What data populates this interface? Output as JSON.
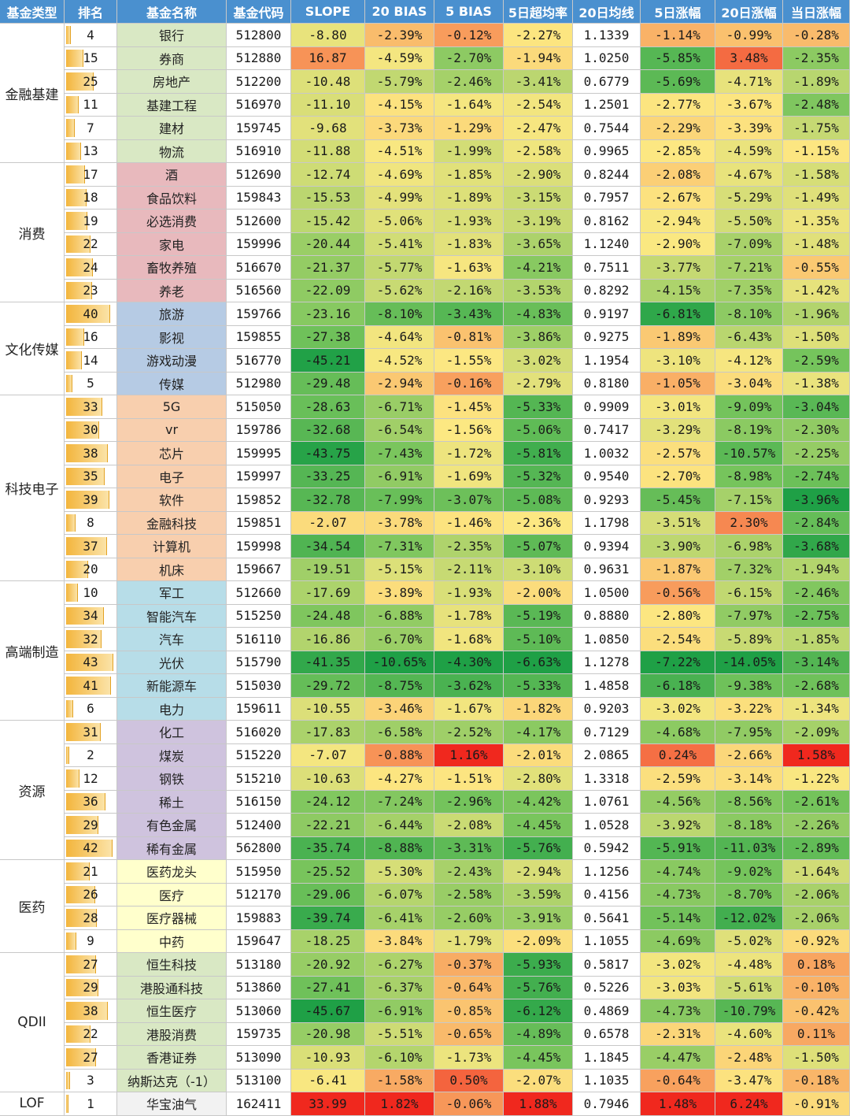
{
  "headers": [
    "基金类型",
    "排名",
    "基金名称",
    "基金代码",
    "SLOPE",
    "20 BIAS",
    "5 BIAS",
    "5日超均率",
    "20日均线",
    "5日涨幅",
    "20日涨幅",
    "当日涨幅"
  ],
  "groups": [
    {
      "name": "金融基建",
      "rows": 6,
      "color": "#d9e8c4"
    },
    {
      "name": "消费",
      "rows": 6,
      "color": "#e8b9bd"
    },
    {
      "name": "文化传媒",
      "rows": 4,
      "color": "#b6cbe4"
    },
    {
      "name": "科技电子",
      "rows": 8,
      "color": "#f8cfae"
    },
    {
      "name": "高端制造",
      "rows": 6,
      "color": "#b7dde8"
    },
    {
      "name": "资源",
      "rows": 6,
      "color": "#cfc3de"
    },
    {
      "name": "医药",
      "rows": 4,
      "color": "#ffffcc"
    },
    {
      "name": "QDII",
      "rows": 6,
      "color": "#d9e8c4"
    },
    {
      "name": "LOF",
      "rows": 1,
      "color": "#f2f2f2"
    }
  ],
  "chart_data": {
    "type": "table",
    "rank_max": 43,
    "rows": [
      {
        "group": 0,
        "rank": "4",
        "name": "银行",
        "code": "512800",
        "slope": -8.8,
        "bias20": -2.39,
        "bias5": -0.12,
        "exceed5": -2.27,
        "ma20": "1.1339",
        "chg5": -1.14,
        "chg20": -0.99,
        "chg1": -0.28
      },
      {
        "group": 0,
        "rank": "15",
        "name": "券商",
        "code": "512880",
        "slope": 16.87,
        "bias20": -4.59,
        "bias5": -2.7,
        "exceed5": -1.94,
        "ma20": "1.0250",
        "chg5": -5.85,
        "chg20": 3.48,
        "chg1": -2.35
      },
      {
        "group": 0,
        "rank": "25",
        "name": "房地产",
        "code": "512200",
        "slope": -10.48,
        "bias20": -5.79,
        "bias5": -2.46,
        "exceed5": -3.41,
        "ma20": "0.6779",
        "chg5": -5.69,
        "chg20": -4.71,
        "chg1": -1.89
      },
      {
        "group": 0,
        "rank": "11",
        "name": "基建工程",
        "code": "516970",
        "slope": -11.1,
        "bias20": -4.15,
        "bias5": -1.64,
        "exceed5": -2.54,
        "ma20": "1.2501",
        "chg5": -2.77,
        "chg20": -3.67,
        "chg1": -2.48
      },
      {
        "group": 0,
        "rank": "7",
        "name": "建材",
        "code": "159745",
        "slope": -9.68,
        "bias20": -3.73,
        "bias5": -1.29,
        "exceed5": -2.47,
        "ma20": "0.7544",
        "chg5": -2.29,
        "chg20": -3.39,
        "chg1": -1.75
      },
      {
        "group": 0,
        "rank": "13",
        "name": "物流",
        "code": "516910",
        "slope": -11.88,
        "bias20": -4.51,
        "bias5": -1.99,
        "exceed5": -2.58,
        "ma20": "0.9965",
        "chg5": -2.85,
        "chg20": -4.59,
        "chg1": -1.15
      },
      {
        "group": 1,
        "rank": "17",
        "name": "酒",
        "code": "512690",
        "slope": -12.74,
        "bias20": -4.69,
        "bias5": -1.85,
        "exceed5": -2.9,
        "ma20": "0.8244",
        "chg5": -2.08,
        "chg20": -4.67,
        "chg1": -1.58
      },
      {
        "group": 1,
        "rank": "18",
        "name": "食品饮料",
        "code": "159843",
        "slope": -15.53,
        "bias20": -4.99,
        "bias5": -1.89,
        "exceed5": -3.15,
        "ma20": "0.7957",
        "chg5": -2.67,
        "chg20": -5.29,
        "chg1": -1.49
      },
      {
        "group": 1,
        "rank": "19",
        "name": "必选消费",
        "code": "512600",
        "slope": -15.42,
        "bias20": -5.06,
        "bias5": -1.93,
        "exceed5": -3.19,
        "ma20": "0.8162",
        "chg5": -2.94,
        "chg20": -5.5,
        "chg1": -1.35
      },
      {
        "group": 1,
        "rank": "22",
        "name": "家电",
        "code": "159996",
        "slope": -20.44,
        "bias20": -5.41,
        "bias5": -1.83,
        "exceed5": -3.65,
        "ma20": "1.1240",
        "chg5": -2.9,
        "chg20": -7.09,
        "chg1": -1.48
      },
      {
        "group": 1,
        "rank": "24",
        "name": "畜牧养殖",
        "code": "516670",
        "slope": -21.37,
        "bias20": -5.77,
        "bias5": -1.63,
        "exceed5": -4.21,
        "ma20": "0.7511",
        "chg5": -3.77,
        "chg20": -7.21,
        "chg1": -0.55
      },
      {
        "group": 1,
        "rank": "23",
        "name": "养老",
        "code": "516560",
        "slope": -22.09,
        "bias20": -5.62,
        "bias5": -2.16,
        "exceed5": -3.53,
        "ma20": "0.8292",
        "chg5": -4.15,
        "chg20": -7.35,
        "chg1": -1.42
      },
      {
        "group": 2,
        "rank": "40",
        "name": "旅游",
        "code": "159766",
        "slope": -23.16,
        "bias20": -8.1,
        "bias5": -3.43,
        "exceed5": -4.83,
        "ma20": "0.9197",
        "chg5": -6.81,
        "chg20": -8.1,
        "chg1": -1.96
      },
      {
        "group": 2,
        "rank": "16",
        "name": "影视",
        "code": "159855",
        "slope": -27.38,
        "bias20": -4.64,
        "bias5": -0.81,
        "exceed5": -3.86,
        "ma20": "0.9275",
        "chg5": -1.89,
        "chg20": -6.43,
        "chg1": -1.5
      },
      {
        "group": 2,
        "rank": "14",
        "name": "游戏动漫",
        "code": "516770",
        "slope": -45.21,
        "bias20": -4.52,
        "bias5": -1.55,
        "exceed5": -3.02,
        "ma20": "1.1954",
        "chg5": -3.1,
        "chg20": -4.12,
        "chg1": -2.59
      },
      {
        "group": 2,
        "rank": "5",
        "name": "传媒",
        "code": "512980",
        "slope": -29.48,
        "bias20": -2.94,
        "bias5": -0.16,
        "exceed5": -2.79,
        "ma20": "0.8180",
        "chg5": -1.05,
        "chg20": -3.04,
        "chg1": -1.38
      },
      {
        "group": 3,
        "rank": "33",
        "name": "5G",
        "code": "515050",
        "slope": -28.63,
        "bias20": -6.71,
        "bias5": -1.45,
        "exceed5": -5.33,
        "ma20": "0.9909",
        "chg5": -3.01,
        "chg20": -9.09,
        "chg1": -3.04
      },
      {
        "group": 3,
        "rank": "30",
        "name": "vr",
        "code": "159786",
        "slope": -32.68,
        "bias20": -6.54,
        "bias5": -1.56,
        "exceed5": -5.06,
        "ma20": "0.7417",
        "chg5": -3.29,
        "chg20": -8.19,
        "chg1": -2.3
      },
      {
        "group": 3,
        "rank": "38",
        "name": "芯片",
        "code": "159995",
        "slope": -43.75,
        "bias20": -7.43,
        "bias5": -1.72,
        "exceed5": -5.81,
        "ma20": "1.0032",
        "chg5": -2.57,
        "chg20": -10.57,
        "chg1": -2.25
      },
      {
        "group": 3,
        "rank": "35",
        "name": "电子",
        "code": "159997",
        "slope": -33.25,
        "bias20": -6.91,
        "bias5": -1.69,
        "exceed5": -5.32,
        "ma20": "0.9540",
        "chg5": -2.7,
        "chg20": -8.98,
        "chg1": -2.74
      },
      {
        "group": 3,
        "rank": "39",
        "name": "软件",
        "code": "159852",
        "slope": -32.78,
        "bias20": -7.99,
        "bias5": -3.07,
        "exceed5": -5.08,
        "ma20": "0.9293",
        "chg5": -5.45,
        "chg20": -7.15,
        "chg1": -3.96
      },
      {
        "group": 3,
        "rank": "8",
        "name": "金融科技",
        "code": "159851",
        "slope": -2.07,
        "bias20": -3.78,
        "bias5": -1.46,
        "exceed5": -2.36,
        "ma20": "1.1798",
        "chg5": -3.51,
        "chg20": 2.3,
        "chg1": -2.84
      },
      {
        "group": 3,
        "rank": "37",
        "name": "计算机",
        "code": "159998",
        "slope": -34.54,
        "bias20": -7.31,
        "bias5": -2.35,
        "exceed5": -5.07,
        "ma20": "0.9394",
        "chg5": -3.9,
        "chg20": -6.98,
        "chg1": -3.68
      },
      {
        "group": 3,
        "rank": "20",
        "name": "机床",
        "code": "159667",
        "slope": -19.51,
        "bias20": -5.15,
        "bias5": -2.11,
        "exceed5": -3.1,
        "ma20": "0.9631",
        "chg5": -1.87,
        "chg20": -7.32,
        "chg1": -1.94
      },
      {
        "group": 4,
        "rank": "10",
        "name": "军工",
        "code": "512660",
        "slope": -17.69,
        "bias20": -3.89,
        "bias5": -1.93,
        "exceed5": -2.0,
        "ma20": "1.0500",
        "chg5": -0.56,
        "chg20": -6.15,
        "chg1": -2.46
      },
      {
        "group": 4,
        "rank": "34",
        "name": "智能汽车",
        "code": "515250",
        "slope": -24.48,
        "bias20": -6.88,
        "bias5": -1.78,
        "exceed5": -5.19,
        "ma20": "0.8880",
        "chg5": -2.8,
        "chg20": -7.97,
        "chg1": -2.75
      },
      {
        "group": 4,
        "rank": "32",
        "name": "汽车",
        "code": "516110",
        "slope": -16.86,
        "bias20": -6.7,
        "bias5": -1.68,
        "exceed5": -5.1,
        "ma20": "1.0850",
        "chg5": -2.54,
        "chg20": -5.89,
        "chg1": -1.85
      },
      {
        "group": 4,
        "rank": "43",
        "name": "光伏",
        "code": "515790",
        "slope": -41.35,
        "bias20": -10.65,
        "bias5": -4.3,
        "exceed5": -6.63,
        "ma20": "1.1278",
        "chg5": -7.22,
        "chg20": -14.05,
        "chg1": -3.14
      },
      {
        "group": 4,
        "rank": "41",
        "name": "新能源车",
        "code": "515030",
        "slope": -29.72,
        "bias20": -8.75,
        "bias5": -3.62,
        "exceed5": -5.33,
        "ma20": "1.4858",
        "chg5": -6.18,
        "chg20": -9.38,
        "chg1": -2.68
      },
      {
        "group": 4,
        "rank": "6",
        "name": "电力",
        "code": "159611",
        "slope": -10.55,
        "bias20": -3.46,
        "bias5": -1.67,
        "exceed5": -1.82,
        "ma20": "0.9203",
        "chg5": -3.02,
        "chg20": -3.22,
        "chg1": -1.34
      },
      {
        "group": 5,
        "rank": "31",
        "name": "化工",
        "code": "516020",
        "slope": -17.83,
        "bias20": -6.58,
        "bias5": -2.52,
        "exceed5": -4.17,
        "ma20": "0.7129",
        "chg5": -4.68,
        "chg20": -7.95,
        "chg1": -2.09
      },
      {
        "group": 5,
        "rank": "2",
        "name": "煤炭",
        "code": "515220",
        "slope": -7.07,
        "bias20": -0.88,
        "bias5": 1.16,
        "exceed5": -2.01,
        "ma20": "2.0865",
        "chg5": 0.24,
        "chg20": -2.66,
        "chg1": 1.58
      },
      {
        "group": 5,
        "rank": "12",
        "name": "钢铁",
        "code": "515210",
        "slope": -10.63,
        "bias20": -4.27,
        "bias5": -1.51,
        "exceed5": -2.8,
        "ma20": "1.3318",
        "chg5": -2.59,
        "chg20": -3.14,
        "chg1": -1.22
      },
      {
        "group": 5,
        "rank": "36",
        "name": "稀土",
        "code": "516150",
        "slope": -24.12,
        "bias20": -7.24,
        "bias5": -2.96,
        "exceed5": -4.42,
        "ma20": "1.0761",
        "chg5": -4.56,
        "chg20": -8.56,
        "chg1": -2.61
      },
      {
        "group": 5,
        "rank": "29",
        "name": "有色金属",
        "code": "512400",
        "slope": -22.21,
        "bias20": -6.44,
        "bias5": -2.08,
        "exceed5": -4.45,
        "ma20": "1.0528",
        "chg5": -3.92,
        "chg20": -8.18,
        "chg1": -2.26
      },
      {
        "group": 5,
        "rank": "42",
        "name": "稀有金属",
        "code": "562800",
        "slope": -35.74,
        "bias20": -8.88,
        "bias5": -3.31,
        "exceed5": -5.76,
        "ma20": "0.5942",
        "chg5": -5.91,
        "chg20": -11.03,
        "chg1": -2.89
      },
      {
        "group": 6,
        "rank": "21",
        "name": "医药龙头",
        "code": "515950",
        "slope": -25.52,
        "bias20": -5.3,
        "bias5": -2.43,
        "exceed5": -2.94,
        "ma20": "1.1256",
        "chg5": -4.74,
        "chg20": -9.02,
        "chg1": -1.64
      },
      {
        "group": 6,
        "rank": "26",
        "name": "医疗",
        "code": "512170",
        "slope": -29.06,
        "bias20": -6.07,
        "bias5": -2.58,
        "exceed5": -3.59,
        "ma20": "0.4156",
        "chg5": -4.73,
        "chg20": -8.7,
        "chg1": -2.06
      },
      {
        "group": 6,
        "rank": "28",
        "name": "医疗器械",
        "code": "159883",
        "slope": -39.74,
        "bias20": -6.41,
        "bias5": -2.6,
        "exceed5": -3.91,
        "ma20": "0.5641",
        "chg5": -5.14,
        "chg20": -12.02,
        "chg1": -2.06
      },
      {
        "group": 6,
        "rank": "9",
        "name": "中药",
        "code": "159647",
        "slope": -18.25,
        "bias20": -3.84,
        "bias5": -1.79,
        "exceed5": -2.09,
        "ma20": "1.1055",
        "chg5": -4.69,
        "chg20": -5.02,
        "chg1": -0.92
      },
      {
        "group": 7,
        "rank": "27",
        "name": "恒生科技",
        "code": "513180",
        "slope": -20.92,
        "bias20": -6.27,
        "bias5": -0.37,
        "exceed5": -5.93,
        "ma20": "0.5817",
        "chg5": -3.02,
        "chg20": -4.48,
        "chg1": 0.18
      },
      {
        "group": 7,
        "rank": "29",
        "name": "港股通科技",
        "code": "513860",
        "slope": -27.41,
        "bias20": -6.37,
        "bias5": -0.64,
        "exceed5": -5.76,
        "ma20": "0.5226",
        "chg5": -3.03,
        "chg20": -5.61,
        "chg1": -0.1
      },
      {
        "group": 7,
        "rank": "38",
        "name": "恒生医疗",
        "code": "513060",
        "slope": -45.67,
        "bias20": -6.91,
        "bias5": -0.85,
        "exceed5": -6.12,
        "ma20": "0.4869",
        "chg5": -4.73,
        "chg20": -10.79,
        "chg1": -0.42
      },
      {
        "group": 7,
        "rank": "22",
        "name": "港股消费",
        "code": "159735",
        "slope": -20.98,
        "bias20": -5.51,
        "bias5": -0.65,
        "exceed5": -4.89,
        "ma20": "0.6578",
        "chg5": -2.31,
        "chg20": -4.6,
        "chg1": 0.11
      },
      {
        "group": 7,
        "rank": "27",
        "name": "香港证券",
        "code": "513090",
        "slope": -10.93,
        "bias20": -6.1,
        "bias5": -1.73,
        "exceed5": -4.45,
        "ma20": "1.1845",
        "chg5": -4.47,
        "chg20": -2.48,
        "chg1": -1.5
      },
      {
        "group": 7,
        "rank": "3",
        "name": "纳斯达克（-1）",
        "code": "513100",
        "slope": -6.41,
        "bias20": -1.58,
        "bias5": 0.5,
        "exceed5": -2.07,
        "ma20": "1.1035",
        "chg5": -0.64,
        "chg20": -3.47,
        "chg1": -0.18
      },
      {
        "group": 8,
        "rank": "1",
        "name": "华宝油气",
        "code": "162411",
        "slope": 33.99,
        "bias20": 1.82,
        "bias5": -0.06,
        "exceed5": 1.88,
        "ma20": "0.7946",
        "chg5": 1.48,
        "chg20": 6.24,
        "chg1": -0.91
      }
    ]
  }
}
